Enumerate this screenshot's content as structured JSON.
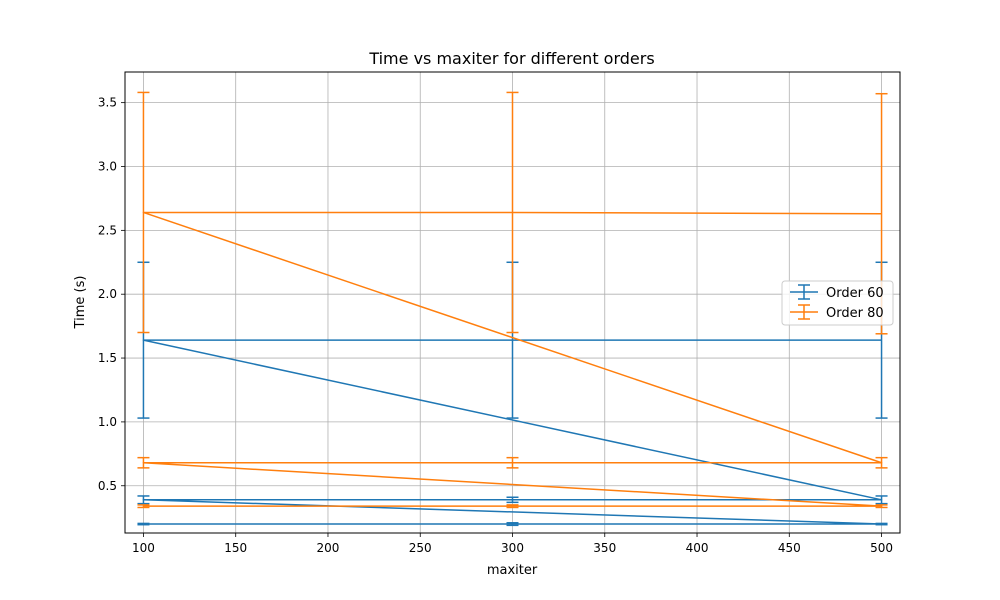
{
  "chart_data": {
    "type": "line",
    "title": "Time vs maxiter for different orders",
    "xlabel": "maxiter",
    "ylabel": "Time (s)",
    "xlim": [
      90,
      510
    ],
    "ylim": [
      0.13,
      3.74
    ],
    "xticks": [
      100,
      150,
      200,
      250,
      300,
      350,
      400,
      450,
      500
    ],
    "xtick_labels": [
      "100",
      "150",
      "200",
      "250",
      "300",
      "350",
      "400",
      "450",
      "500"
    ],
    "yticks": [
      0.5,
      1.0,
      1.5,
      2.0,
      2.5,
      3.0,
      3.5
    ],
    "ytick_labels": [
      "0.5",
      "1.0",
      "1.5",
      "2.0",
      "2.5",
      "3.0",
      "3.5"
    ],
    "grid": true,
    "legend_position": "center-right",
    "x": [
      100,
      300,
      500,
      100,
      300,
      500,
      100,
      300,
      500
    ],
    "series": [
      {
        "name": "Order 60",
        "color": "#1f77b4",
        "y": [
          0.2,
          0.2,
          0.2,
          0.39,
          0.39,
          0.39,
          1.64,
          1.64,
          1.64
        ],
        "err": [
          0.005,
          0.01,
          0.005,
          0.03,
          0.02,
          0.03,
          0.61,
          0.61,
          0.61
        ]
      },
      {
        "name": "Order 80",
        "color": "#ff7f0e",
        "y": [
          0.34,
          0.34,
          0.34,
          0.68,
          0.68,
          0.68,
          2.64,
          2.64,
          2.63
        ],
        "err": [
          0.01,
          0.01,
          0.01,
          0.04,
          0.04,
          0.04,
          0.94,
          0.94,
          0.94
        ]
      }
    ]
  }
}
